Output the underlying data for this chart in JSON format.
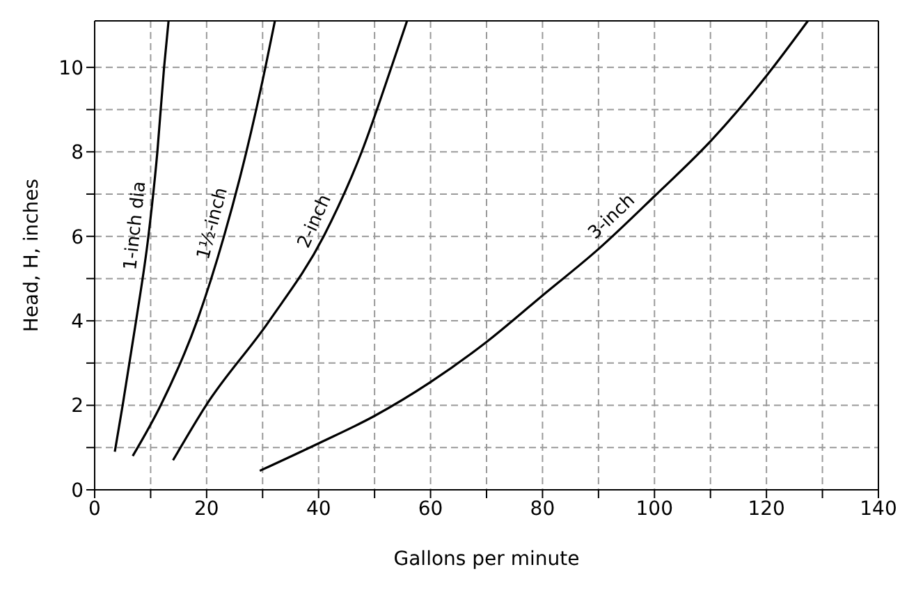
{
  "chart_data": {
    "type": "line",
    "xlabel": "Gallons per minute",
    "ylabel": "Head, H, inches",
    "xlim": [
      0,
      140
    ],
    "ylim": [
      0,
      11.1
    ],
    "xticks": [
      0,
      {
        "value": 10,
        "label": null
      },
      20,
      {
        "value": 30,
        "label": null
      },
      40,
      {
        "value": 50,
        "label": null
      },
      60,
      {
        "value": 70,
        "label": null
      },
      80,
      {
        "value": 90,
        "label": null
      },
      100,
      {
        "value": 110,
        "label": null
      },
      120,
      {
        "value": 130,
        "label": null
      },
      140
    ],
    "yticks": [
      0,
      {
        "value": 1,
        "label": null
      },
      2,
      {
        "value": 3,
        "label": null
      },
      4,
      {
        "value": 5,
        "label": null
      },
      6,
      {
        "value": 7,
        "label": null
      },
      8,
      {
        "value": 9,
        "label": null
      },
      10
    ],
    "grid": true,
    "marker": "none",
    "line_style": "solid",
    "series": [
      {
        "name": "1-inch dia",
        "color": "#000000",
        "x": [
          3.6,
          5.0,
          7.4,
          9.6,
          11.2,
          12.4,
          13.2
        ],
        "values": [
          0.9,
          2,
          4,
          6,
          8,
          10,
          11.1
        ]
      },
      {
        "name": "1½-inch",
        "color": "#000000",
        "x": [
          6.8,
          11.8,
          18.3,
          23.1,
          27.1,
          30.5,
          32.2
        ],
        "values": [
          0.8,
          2,
          4,
          6,
          8,
          10,
          11.1
        ]
      },
      {
        "name": "2-inch",
        "color": "#000000",
        "x": [
          14.0,
          19.9,
          31.2,
          40.9,
          47.7,
          53.0,
          55.8
        ],
        "values": [
          0.7,
          2,
          4,
          6,
          8,
          10,
          11.1
        ]
      },
      {
        "name": "3-inch",
        "color": "#000000",
        "x": [
          29.5,
          40,
          50,
          60,
          70,
          80,
          90,
          100,
          110,
          120,
          127.4
        ],
        "values": [
          0.45,
          1.1,
          1.75,
          2.55,
          3.5,
          4.6,
          5.7,
          6.95,
          8.25,
          9.8,
          11.1
        ]
      }
    ]
  }
}
